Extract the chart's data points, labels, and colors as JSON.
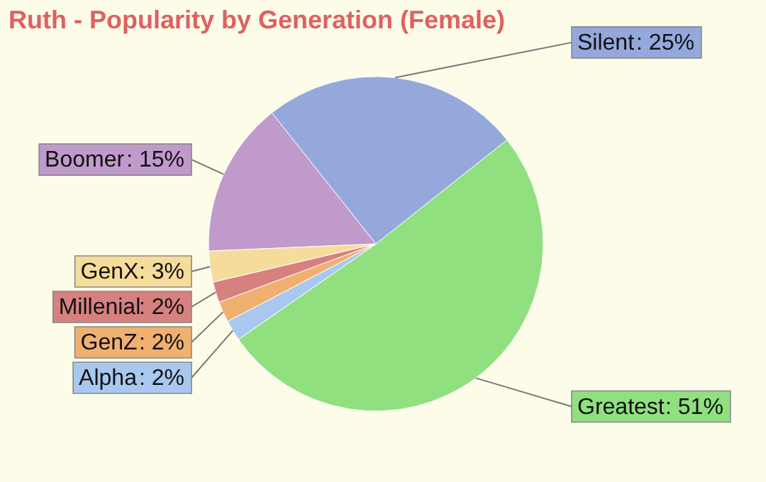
{
  "chart_data": {
    "type": "pie",
    "title": "Ruth - Popularity by Generation (Female)",
    "categories": [
      "Greatest",
      "Alpha",
      "GenZ",
      "Millenial",
      "GenX",
      "Boomer",
      "Silent"
    ],
    "values": [
      51,
      2,
      2,
      2,
      3,
      15,
      25
    ],
    "colors": [
      "#90e080",
      "#a8c8f0",
      "#f0b070",
      "#d78080",
      "#f5dc9a",
      "#c09acb",
      "#94a8dc"
    ],
    "value_labels": [
      ": 51%",
      ": 2%",
      ": 2%",
      ": 2%",
      ": 3%",
      ": 15%",
      ": 25%"
    ]
  }
}
